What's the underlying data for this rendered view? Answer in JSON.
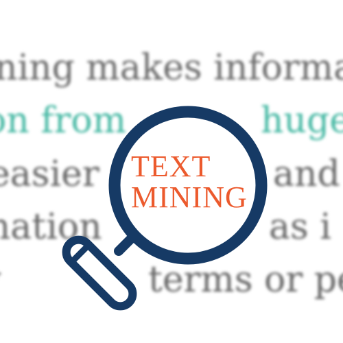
{
  "background_text": {
    "line_1": "ning makes informa",
    "line_2": "on from",
    "line_2_right": "huge",
    "line_3": "easier",
    "line_3_right": "and",
    "line_4": "mation",
    "line_4_right": "as i",
    "line_5": "y",
    "line_5_right": "terms or pe"
  },
  "lens": {
    "word_1": "TEXT",
    "word_2": "MINING"
  },
  "colors": {
    "teal_text": "#45b8a3",
    "gray_text": "#666666",
    "lens_text": "#ec5a2d",
    "magnifier": "#163a65"
  },
  "icon": "magnifying-glass-icon"
}
